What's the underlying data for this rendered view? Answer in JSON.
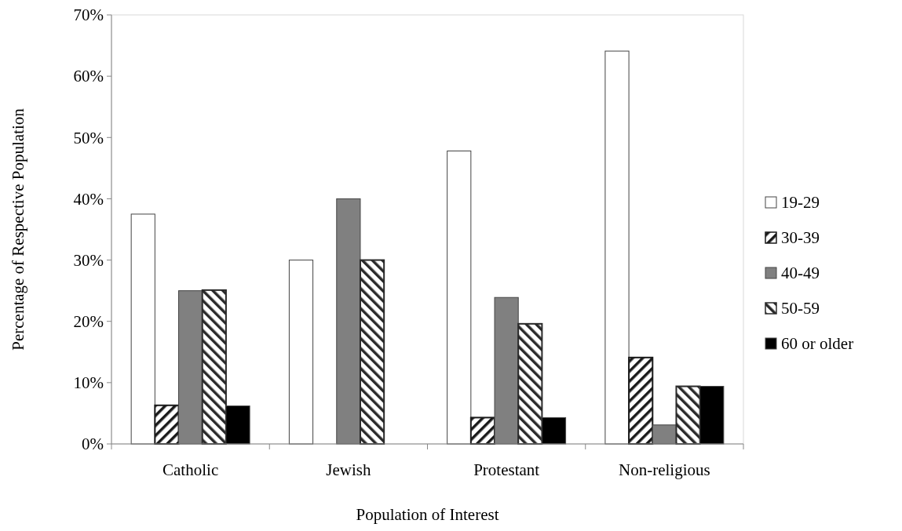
{
  "chart_data": {
    "type": "bar",
    "xlabel": "Population of Interest",
    "ylabel": "Percentage of Respective Population",
    "categories": [
      "Catholic",
      "Jewish",
      "Protestant",
      "Non-religious"
    ],
    "ylim": [
      0,
      70
    ],
    "yticks": [
      {
        "value": 0,
        "label": "0%"
      },
      {
        "value": 10,
        "label": "10%"
      },
      {
        "value": 20,
        "label": "20%"
      },
      {
        "value": 30,
        "label": "30%"
      },
      {
        "value": 40,
        "label": "40%"
      },
      {
        "value": 50,
        "label": "50%"
      },
      {
        "value": 60,
        "label": "60%"
      },
      {
        "value": 70,
        "label": "70%"
      }
    ],
    "grid": false,
    "legend": "right",
    "series": [
      {
        "name": "19-29",
        "color": "#ffffff",
        "values": [
          37.5,
          30,
          47.8,
          64.1
        ]
      },
      {
        "name": "30-39",
        "color": "#1a1a1a",
        "values": [
          6.3,
          null,
          4.3,
          14.1
        ]
      },
      {
        "name": "40-49",
        "color": "#808080",
        "values": [
          25,
          40,
          23.9,
          3.1
        ]
      },
      {
        "name": "50-59",
        "color": "#2a2a2a",
        "values": [
          25.1,
          30,
          19.6,
          9.4
        ]
      },
      {
        "name": "60 or older",
        "color": "#000000",
        "values": [
          6.2,
          null,
          4.3,
          9.4
        ]
      }
    ]
  }
}
